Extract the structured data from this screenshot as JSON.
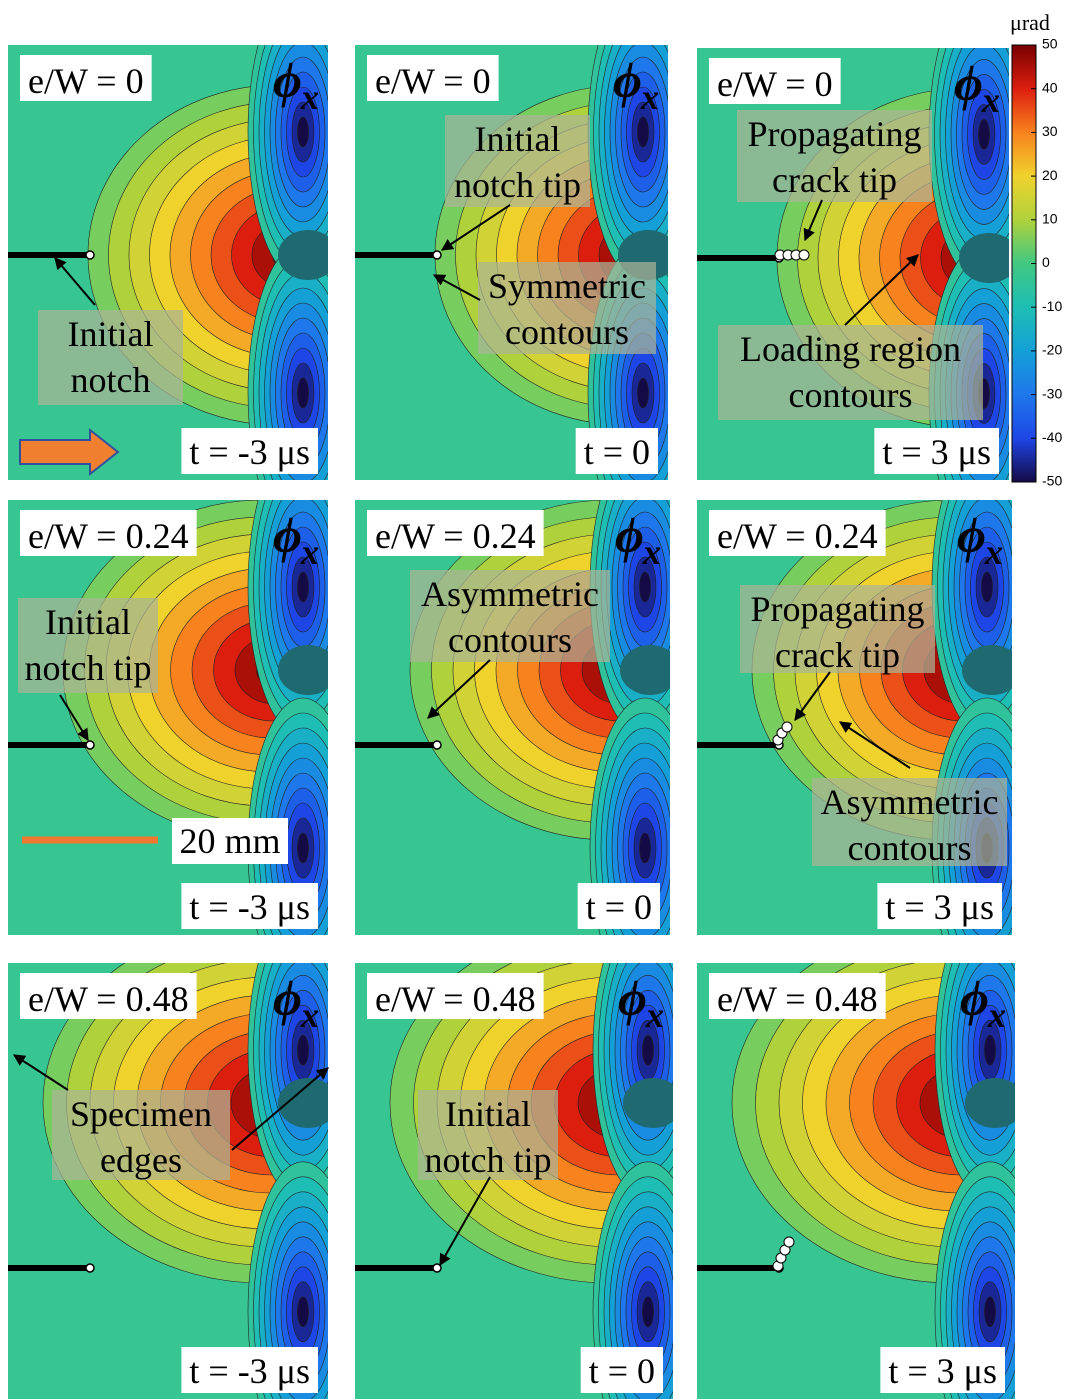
{
  "symbol": {
    "main": "ϕ",
    "sub": "x"
  },
  "colorbar": {
    "unit": "μrad",
    "lim": [
      -50,
      50
    ],
    "ticks": [
      50,
      40,
      30,
      20,
      10,
      0,
      -10,
      -20,
      -30,
      -40,
      -50
    ]
  },
  "scale_bar": "20 mm",
  "panels": [
    {
      "ew": "e/W = 0",
      "time": "t = -3 μs",
      "annotations": [
        [
          "Initial",
          "notch"
        ]
      ]
    },
    {
      "ew": "e/W = 0",
      "time": "t = 0",
      "annotations": [
        [
          "Initial",
          "notch tip"
        ],
        [
          "Symmetric",
          "contours"
        ]
      ]
    },
    {
      "ew": "e/W = 0",
      "time": "t = 3 μs",
      "annotations": [
        [
          "Propagating",
          "crack tip"
        ],
        [
          "Loading region",
          "contours"
        ]
      ]
    },
    {
      "ew": "e/W = 0.24",
      "time": "t = -3 μs",
      "annotations": [
        [
          "Initial",
          "notch tip"
        ]
      ]
    },
    {
      "ew": "e/W = 0.24",
      "time": "t = 0",
      "annotations": [
        [
          "Asymmetric",
          "contours"
        ]
      ]
    },
    {
      "ew": "e/W = 0.24",
      "time": "t = 3 μs",
      "annotations": [
        [
          "Propagating",
          "crack tip"
        ],
        [
          "Asymmetric",
          "contours"
        ]
      ]
    },
    {
      "ew": "e/W = 0.48",
      "time": "t = -3 μs",
      "annotations": [
        [
          "Specimen",
          "edges"
        ]
      ]
    },
    {
      "ew": "e/W = 0.48",
      "time": "t = 0",
      "annotations": [
        [
          "Initial",
          "notch tip"
        ]
      ]
    },
    {
      "ew": "e/W = 0.48",
      "time": "t = 3 μs",
      "annotations": []
    }
  ]
}
